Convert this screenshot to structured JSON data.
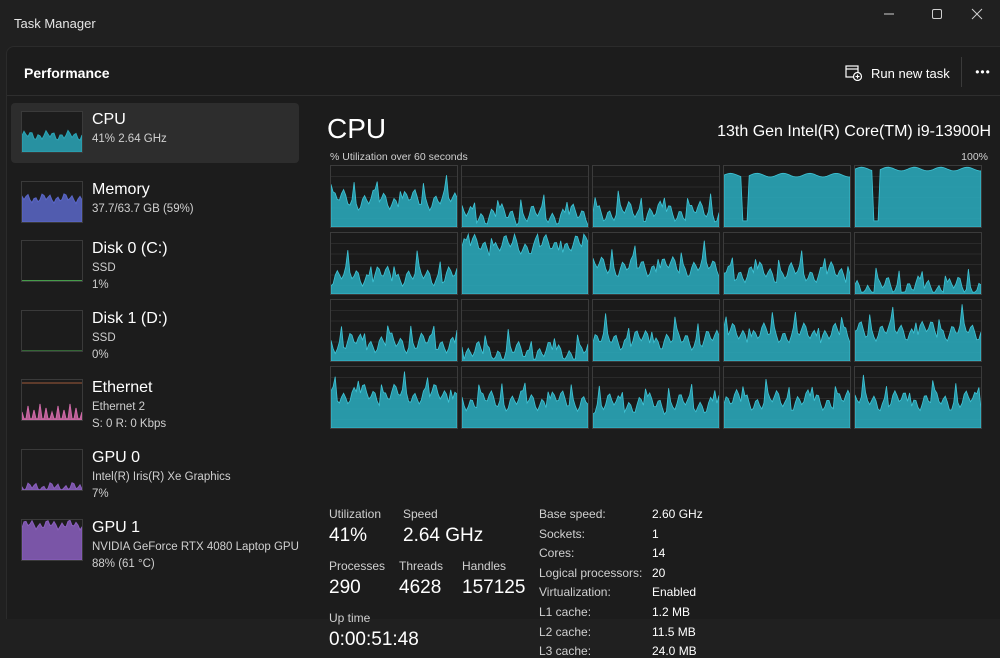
{
  "window": {
    "title": "Task Manager",
    "minimize_icon": "minimize-icon",
    "maximize_icon": "maximize-icon",
    "close_icon": "close-icon"
  },
  "header": {
    "title": "Performance",
    "run_task_label": "Run new task",
    "run_task_icon": "run-task-icon",
    "more_label": "•••"
  },
  "sidebar": {
    "items": [
      {
        "name": "CPU",
        "lines": [
          "41%  2.64 GHz"
        ],
        "color": "#2aa6b8",
        "fill": 0.41
      },
      {
        "name": "Memory",
        "lines": [
          "37.7/63.7 GB (59%)"
        ],
        "color": "#5a67c9",
        "fill": 0.59
      },
      {
        "name": "Disk 0 (C:)",
        "lines": [
          "SSD",
          "1%"
        ],
        "color": "#4caf50",
        "fill": 0.01
      },
      {
        "name": "Disk 1 (D:)",
        "lines": [
          "SSD",
          "0%"
        ],
        "color": "#4caf50",
        "fill": 0.0
      },
      {
        "name": "Ethernet",
        "lines": [
          "Ethernet 2",
          "S: 0 R: 0 Kbps"
        ],
        "color": "#d06aa8",
        "fill": 0.0
      },
      {
        "name": "GPU 0",
        "lines": [
          "Intel(R) Iris(R) Xe Graphics",
          "7%"
        ],
        "color": "#8b5fbf",
        "fill": 0.07
      },
      {
        "name": "GPU 1",
        "lines": [
          "NVIDIA GeForce RTX 4080 Laptop GPU",
          "88% (61 °C)"
        ],
        "color": "#8b5fbf",
        "fill": 0.88
      }
    ]
  },
  "main": {
    "title": "CPU",
    "model": "13th Gen Intel(R) Core(TM) i9-13900H",
    "graph_label_left": "% Utilization over 60 seconds",
    "graph_label_right": "100%",
    "graph_color": "#2aa6b8",
    "core_levels": [
      0.45,
      0.2,
      0.25,
      0.85,
      0.95,
      0.3,
      0.8,
      0.45,
      0.35,
      0.12,
      0.3,
      0.15,
      0.35,
      0.45,
      0.5,
      0.55,
      0.45,
      0.4,
      0.45,
      0.45
    ],
    "stats": {
      "utilization_label": "Utilization",
      "utilization": "41%",
      "speed_label": "Speed",
      "speed": "2.64 GHz",
      "processes_label": "Processes",
      "processes": "290",
      "threads_label": "Threads",
      "threads": "4628",
      "handles_label": "Handles",
      "handles": "157125",
      "uptime_label": "Up time",
      "uptime": "0:00:51:48"
    },
    "specs": [
      {
        "label": "Base speed:",
        "value": "2.60 GHz"
      },
      {
        "label": "Sockets:",
        "value": "1"
      },
      {
        "label": "Cores:",
        "value": "14"
      },
      {
        "label": "Logical processors:",
        "value": "20"
      },
      {
        "label": "Virtualization:",
        "value": "Enabled"
      },
      {
        "label": "L1 cache:",
        "value": "1.2 MB"
      },
      {
        "label": "L2 cache:",
        "value": "11.5 MB"
      },
      {
        "label": "L3 cache:",
        "value": "24.0 MB"
      }
    ]
  }
}
